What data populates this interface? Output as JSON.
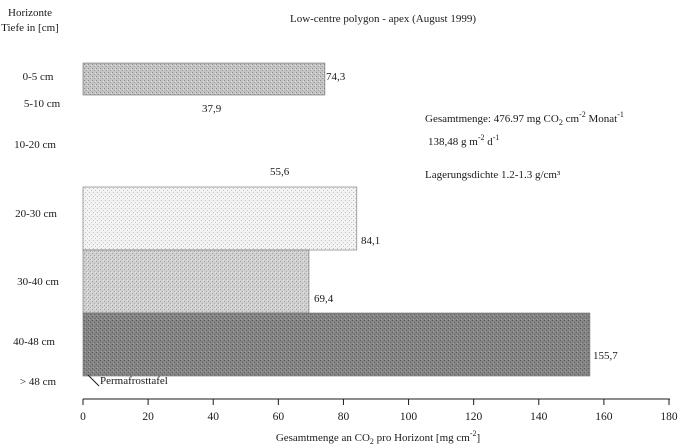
{
  "chart_data": {
    "type": "bar",
    "orientation": "horizontal",
    "title": "Low-centre polygon  -  apex (August 1999)",
    "y_title_line1": "Horizonte",
    "y_title_line2": "Tiefe in [cm]",
    "xlabel_pre": "Gesamtmenge an CO",
    "xlabel_sub": "2",
    "xlabel_mid": " pro Horizont [mg cm",
    "xlabel_sup": "-2",
    "xlabel_post": "]",
    "xlim": [
      0,
      180
    ],
    "xticks": [
      0,
      20,
      40,
      60,
      80,
      100,
      120,
      140,
      160,
      180
    ],
    "grid": false,
    "categories": [
      "0-5 cm",
      "5-10 cm",
      "10-20 cm",
      "20-30 cm",
      "30-40 cm",
      "40-48 cm",
      "> 48 cm"
    ],
    "values": [
      74.3,
      37.9,
      55.6,
      84.1,
      69.4,
      155.7,
      null
    ],
    "value_labels": [
      "74,3",
      "37,9",
      "55,6",
      "84,1",
      "69,4",
      "155,7",
      ""
    ],
    "bar_colors": [
      "#bdbdbd",
      null,
      null,
      "#eeeeee",
      "#c9c9c9",
      "#7f7f7f",
      null
    ],
    "permafrost_label": "Permafrosttafel",
    "annotations": {
      "total_pre": "Gesamtmenge: 476.97 mg CO",
      "total_sub": "2",
      "total_mid": " cm",
      "total_sup1": "-2",
      "total_post": " Monat",
      "total_sup2": "-1",
      "rate_pre": "138,48 g m",
      "rate_sup1": "-2",
      "rate_mid": " d",
      "rate_sup2": "-1",
      "density": "Lagerungsdichte 1.2-1.3 g/cm³"
    }
  }
}
